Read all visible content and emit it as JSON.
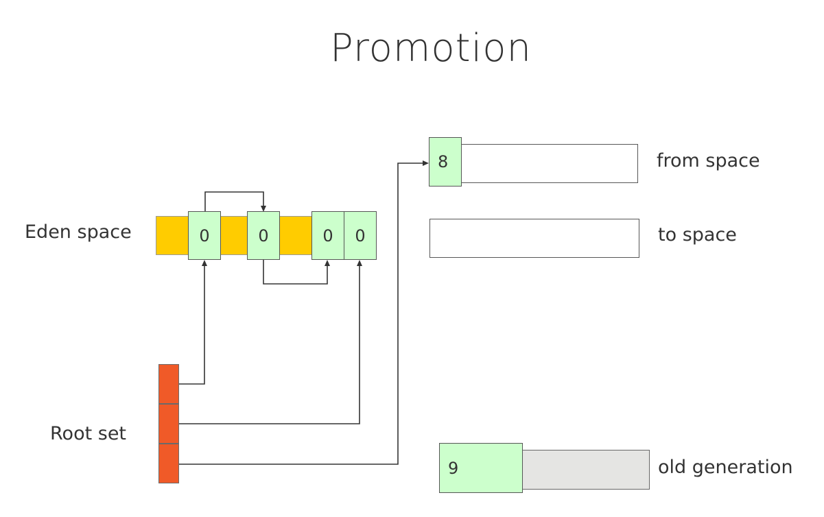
{
  "title": "Promotion",
  "labels": {
    "eden": "Eden space",
    "root": "Root set",
    "from": "from space",
    "to": "to space",
    "old": "old generation"
  },
  "eden_objects": [
    "0",
    "0",
    "0",
    "0"
  ],
  "from_object": "8",
  "old_object": "9",
  "colors": {
    "eden": "#ffcc00",
    "object": "#ccffcc",
    "root": "#f05a28",
    "old_generation": "#e5e5e3",
    "arrow": "#333333"
  }
}
